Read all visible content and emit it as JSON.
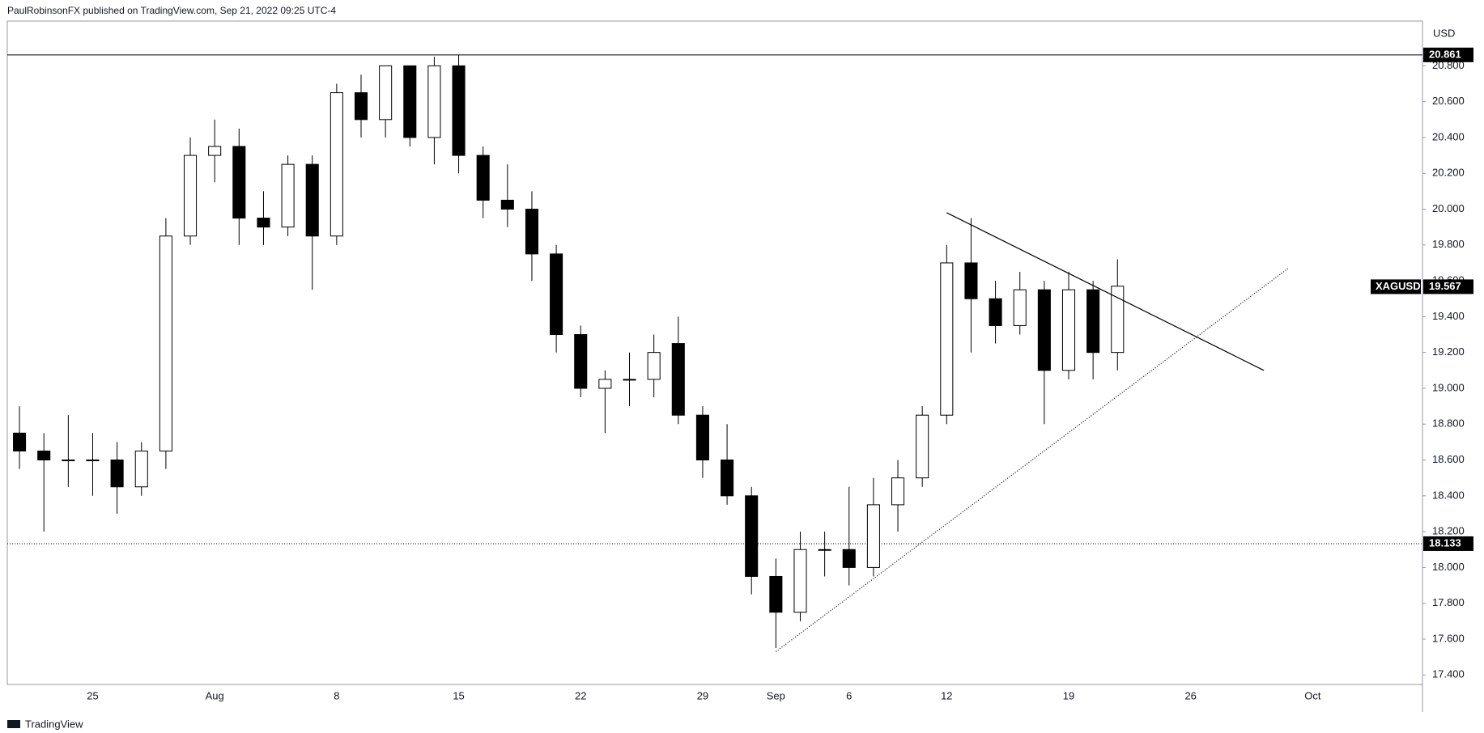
{
  "header": "PaulRobinsonFX published on TradingView.com, Sep 21, 2022 09:25 UTC-4",
  "footer": "TradingView",
  "chart_data": {
    "type": "candlestick",
    "symbol": "XAGUSD",
    "currency": "USD",
    "categories": [
      null,
      null,
      null,
      "25",
      null,
      null,
      null,
      null,
      "Aug",
      null,
      null,
      null,
      null,
      "8",
      null,
      null,
      null,
      null,
      "15",
      null,
      null,
      null,
      null,
      "22",
      null,
      null,
      null,
      null,
      "29",
      null,
      null,
      "Sep",
      null,
      null,
      "6",
      null,
      null,
      null,
      "12",
      null,
      null,
      null,
      null,
      "19",
      null,
      null,
      null,
      null,
      "26",
      null,
      null,
      null,
      null,
      "Oct",
      null,
      null,
      null,
      null
    ],
    "open": [
      18.75,
      18.65,
      18.6,
      18.6,
      18.6,
      18.45,
      18.65,
      19.85,
      20.3,
      20.35,
      19.95,
      19.9,
      20.25,
      19.85,
      20.65,
      20.5,
      20.8,
      20.4,
      20.8,
      20.3,
      20.05,
      20.0,
      19.75,
      19.3,
      19.0,
      19.05,
      19.05,
      19.25,
      18.85,
      18.6,
      18.4,
      17.95,
      17.75,
      18.1,
      18.1,
      18.0,
      18.35,
      18.5,
      18.85,
      19.7,
      19.5,
      19.35,
      19.55,
      19.1,
      19.55,
      19.2,
      null,
      null,
      null,
      null,
      null,
      null,
      null,
      null,
      null,
      null,
      null,
      null
    ],
    "high": [
      18.9,
      18.75,
      18.85,
      18.75,
      18.7,
      18.7,
      19.95,
      20.4,
      20.5,
      20.45,
      20.1,
      20.3,
      20.3,
      20.7,
      20.75,
      20.8,
      20.8,
      20.85,
      20.86,
      20.35,
      20.25,
      20.1,
      19.8,
      19.35,
      19.1,
      19.2,
      19.3,
      19.4,
      18.9,
      18.8,
      18.45,
      18.05,
      18.2,
      18.2,
      18.45,
      18.5,
      18.6,
      18.9,
      19.8,
      19.95,
      19.6,
      19.65,
      19.6,
      19.65,
      19.6,
      19.72,
      null,
      null,
      null,
      null,
      null,
      null,
      null,
      null,
      null,
      null,
      null,
      null
    ],
    "low": [
      18.55,
      18.2,
      18.45,
      18.4,
      18.3,
      18.4,
      18.55,
      19.8,
      20.15,
      19.8,
      19.8,
      19.85,
      19.55,
      19.8,
      20.4,
      20.4,
      20.35,
      20.25,
      20.2,
      19.95,
      19.9,
      19.6,
      19.2,
      18.95,
      18.75,
      18.9,
      18.95,
      18.8,
      18.5,
      18.35,
      17.85,
      17.55,
      17.7,
      17.95,
      17.9,
      17.95,
      18.2,
      18.45,
      18.8,
      19.2,
      19.25,
      19.3,
      18.8,
      19.05,
      19.05,
      19.1,
      null,
      null,
      null,
      null,
      null,
      null,
      null,
      null,
      null,
      null,
      null,
      null
    ],
    "close": [
      18.65,
      18.6,
      18.6,
      18.6,
      18.45,
      18.65,
      19.85,
      20.3,
      20.35,
      19.95,
      19.9,
      20.25,
      19.85,
      20.65,
      20.5,
      20.8,
      20.4,
      20.8,
      20.3,
      20.05,
      20.0,
      19.75,
      19.3,
      19.0,
      19.05,
      19.05,
      19.2,
      18.85,
      18.6,
      18.4,
      17.95,
      17.75,
      18.1,
      18.1,
      18.0,
      18.35,
      18.5,
      18.85,
      19.7,
      19.5,
      19.35,
      19.55,
      19.1,
      19.55,
      19.2,
      19.57,
      null,
      null,
      null,
      null,
      null,
      null,
      null,
      null,
      null,
      null,
      null,
      null
    ],
    "up_color": "#ffffff",
    "down_color": "#000000",
    "outline_color": "#000000",
    "ylim": [
      17.347,
      21.05
    ],
    "yticks": [
      {
        "value": 17.4,
        "label": "17.400"
      },
      {
        "value": 17.6,
        "label": "17.600"
      },
      {
        "value": 17.8,
        "label": "17.800"
      },
      {
        "value": 18.0,
        "label": "18.000"
      },
      {
        "value": 18.2,
        "label": "18.200"
      },
      {
        "value": 18.4,
        "label": "18.400"
      },
      {
        "value": 18.6,
        "label": "18.600"
      },
      {
        "value": 18.8,
        "label": "18.800"
      },
      {
        "value": 19.0,
        "label": "19.000"
      },
      {
        "value": 19.2,
        "label": "19.200"
      },
      {
        "value": 19.4,
        "label": "19.400"
      },
      {
        "value": 19.6,
        "label": "19.600"
      },
      {
        "value": 19.8,
        "label": "19.800"
      },
      {
        "value": 20.0,
        "label": "20.000"
      },
      {
        "value": 20.2,
        "label": "20.200"
      },
      {
        "value": 20.4,
        "label": "20.400"
      },
      {
        "value": 20.6,
        "label": "20.600"
      },
      {
        "value": 20.8,
        "label": "20.800"
      }
    ],
    "levels": [
      {
        "value": 20.861,
        "label": "20.861",
        "style": "solid"
      },
      {
        "value": 18.133,
        "label": "18.133",
        "style": "dotted"
      }
    ],
    "last_price": {
      "value": 19.567,
      "label": "19.567"
    },
    "trendlines": [
      {
        "x": [
          38,
          51
        ],
        "y": [
          19.98,
          19.1
        ],
        "style": "solid"
      },
      {
        "x": [
          31,
          52
        ],
        "y": [
          17.53,
          19.67
        ],
        "style": "dotted"
      }
    ]
  }
}
